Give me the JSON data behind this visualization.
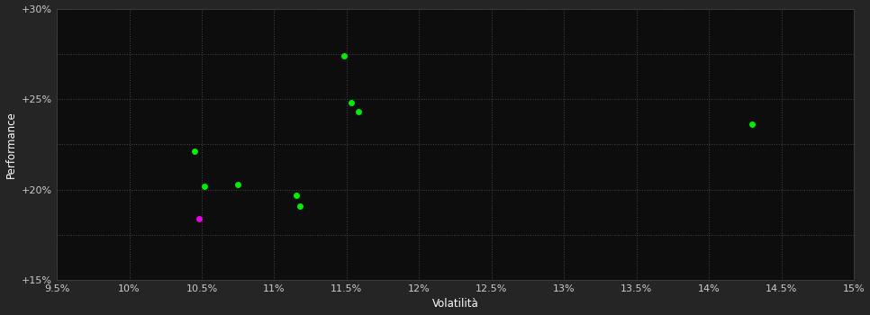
{
  "background_color": "#252525",
  "plot_bg_color": "#0d0d0d",
  "grid_color": "#444444",
  "grid_style": ":",
  "xlabel": "Volatilità",
  "ylabel": "Performance",
  "xlim": [
    0.095,
    0.15
  ],
  "ylim": [
    0.15,
    0.3
  ],
  "xticks": [
    0.095,
    0.1,
    0.105,
    0.11,
    0.115,
    0.12,
    0.125,
    0.13,
    0.135,
    0.14,
    0.145,
    0.15
  ],
  "yticks": [
    0.15,
    0.175,
    0.2,
    0.225,
    0.25,
    0.275,
    0.3
  ],
  "ytick_labels": [
    "+15%",
    "",
    "+20%",
    "",
    "+25%",
    "",
    "+30%"
  ],
  "green_points": [
    [
      0.1045,
      0.221
    ],
    [
      0.1052,
      0.202
    ],
    [
      0.1075,
      0.203
    ],
    [
      0.1115,
      0.197
    ],
    [
      0.1118,
      0.191
    ],
    [
      0.1148,
      0.274
    ],
    [
      0.1153,
      0.248
    ],
    [
      0.1158,
      0.243
    ],
    [
      0.143,
      0.236
    ]
  ],
  "magenta_points": [
    [
      0.1048,
      0.184
    ]
  ],
  "green_color": "#00ee00",
  "magenta_color": "#ee00ee",
  "point_size": 25,
  "font_color": "#ffffff",
  "tick_label_color": "#cccccc",
  "label_fontsize": 8.5,
  "tick_fontsize": 8
}
